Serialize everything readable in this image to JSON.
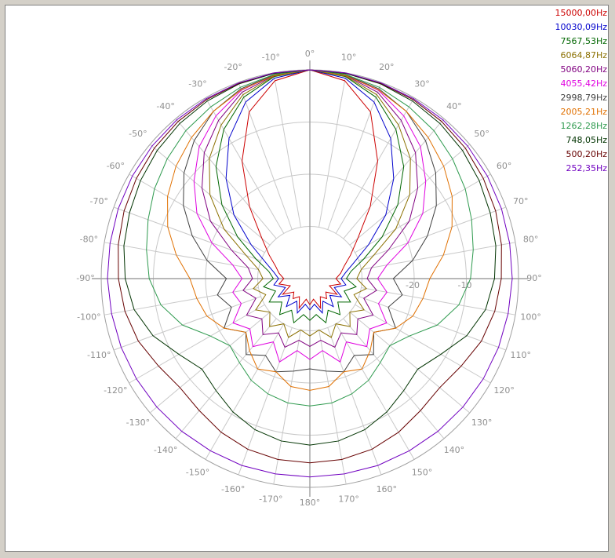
{
  "chart_data": {
    "type": "polar",
    "theta": [
      -170,
      -160,
      -150,
      -140,
      -130,
      -120,
      -110,
      -100,
      -90,
      -80,
      -70,
      -60,
      -50,
      -40,
      -30,
      -20,
      -10,
      0,
      10,
      20,
      30,
      40,
      50,
      60,
      70,
      80,
      90,
      100,
      110,
      120,
      130,
      140,
      150,
      160,
      170,
      180
    ],
    "rlim": [
      -40,
      0
    ],
    "rticks": [
      {
        "value": -30,
        "label": null
      },
      -20,
      -10
    ],
    "thetaticks": [
      {
        "value": -170,
        "label": "-170°"
      },
      {
        "value": -160,
        "label": "-160°"
      },
      {
        "value": -150,
        "label": "-150°"
      },
      {
        "value": -140,
        "label": "-140°"
      },
      {
        "value": -130,
        "label": "-130°"
      },
      {
        "value": -120,
        "label": "-120°"
      },
      {
        "value": -110,
        "label": "-110°"
      },
      {
        "value": -100,
        "label": "-100°"
      },
      {
        "value": -90,
        "label": "-90°"
      },
      {
        "value": -80,
        "label": "-80°"
      },
      {
        "value": -70,
        "label": "-70°"
      },
      {
        "value": -60,
        "label": "-60°"
      },
      {
        "value": -50,
        "label": "-50°"
      },
      {
        "value": -40,
        "label": "-40°"
      },
      {
        "value": -30,
        "label": "-30°"
      },
      {
        "value": -20,
        "label": "-20°"
      },
      {
        "value": -10,
        "label": "-10°"
      },
      {
        "value": 0,
        "label": "0°"
      },
      {
        "value": 10,
        "label": "10°"
      },
      {
        "value": 20,
        "label": "20°"
      },
      {
        "value": 30,
        "label": "30°"
      },
      {
        "value": 40,
        "label": "40°"
      },
      {
        "value": 50,
        "label": "50°"
      },
      {
        "value": 60,
        "label": "60°"
      },
      {
        "value": 70,
        "label": "70°"
      },
      {
        "value": 80,
        "label": "80°"
      },
      {
        "value": 90,
        "label": "90°"
      },
      {
        "value": 100,
        "label": "100°"
      },
      {
        "value": 110,
        "label": "110°"
      },
      {
        "value": 120,
        "label": "120°"
      },
      {
        "value": 130,
        "label": "130°"
      },
      {
        "value": 140,
        "label": "140°"
      },
      {
        "value": 150,
        "label": "150°"
      },
      {
        "value": 160,
        "label": "160°"
      },
      {
        "value": 170,
        "label": "170°"
      },
      {
        "value": 180,
        "label": "180°"
      }
    ],
    "grid": true,
    "legend": "top-right",
    "series": [
      {
        "name": "15000,00Hz",
        "color": "#cc0000",
        "values": [
          -36,
          -34,
          -36,
          -35,
          -36,
          -34,
          -36,
          -34,
          -35,
          -34,
          -33,
          -31,
          -28,
          -22,
          -14,
          -6,
          -1.5,
          0,
          -1.5,
          -6,
          -14,
          -22,
          -28,
          -31,
          -33,
          -34,
          -35,
          -34,
          -36,
          -34,
          -36,
          -35,
          -36,
          -34,
          -36,
          -35
        ]
      },
      {
        "name": "10030,09Hz",
        "color": "#0000cc",
        "values": [
          -35,
          -33,
          -35,
          -33,
          -35,
          -33,
          -35,
          -33,
          -34,
          -33,
          -31,
          -27,
          -21,
          -15,
          -9,
          -4,
          -1,
          0,
          -1,
          -4,
          -9,
          -15,
          -21,
          -27,
          -31,
          -33,
          -34,
          -33,
          -35,
          -33,
          -35,
          -33,
          -35,
          -33,
          -35,
          -34
        ]
      },
      {
        "name": "7567,53Hz",
        "color": "#006600",
        "values": [
          -33,
          -31,
          -33,
          -31,
          -33,
          -31,
          -33,
          -31,
          -33,
          -32,
          -29,
          -24,
          -18,
          -12,
          -7,
          -3,
          -0.7,
          0,
          -0.7,
          -3,
          -7,
          -12,
          -18,
          -24,
          -29,
          -32,
          -33,
          -31,
          -33,
          -31,
          -33,
          -31,
          -33,
          -31,
          -33,
          -32
        ]
      },
      {
        "name": "6064,87Hz",
        "color": "#8b7000",
        "values": [
          -30,
          -28,
          -30,
          -28,
          -30,
          -28,
          -31,
          -29,
          -31,
          -30,
          -27,
          -21,
          -15,
          -10,
          -6,
          -2.5,
          -0.6,
          0,
          -0.6,
          -2.5,
          -6,
          -10,
          -15,
          -21,
          -27,
          -30,
          -31,
          -29,
          -31,
          -28,
          -30,
          -28,
          -30,
          -28,
          -30,
          -29
        ]
      },
      {
        "name": "5060,20Hz",
        "color": "#800080",
        "values": [
          -28,
          -26,
          -28,
          -26,
          -28,
          -26,
          -29,
          -27,
          -29,
          -28,
          -24,
          -18,
          -13,
          -8.5,
          -5,
          -2,
          -0.5,
          0,
          -0.5,
          -2,
          -5,
          -8.5,
          -13,
          -18,
          -24,
          -28,
          -29,
          -27,
          -29,
          -26,
          -28,
          -26,
          -28,
          -26,
          -28,
          -27
        ]
      },
      {
        "name": "4055,42Hz",
        "color": "#e000e0",
        "values": [
          -26,
          -23,
          -26,
          -23,
          -25,
          -23,
          -26,
          -25,
          -27,
          -25,
          -20,
          -15,
          -11,
          -7,
          -4,
          -1.6,
          -0.4,
          0,
          -0.4,
          -1.6,
          -4,
          -7,
          -11,
          -15,
          -20,
          -25,
          -27,
          -25,
          -26,
          -23,
          -25,
          -23,
          -26,
          -23,
          -26,
          -24.5
        ]
      },
      {
        "name": "2998,79Hz",
        "color": "#404040",
        "values": [
          -22,
          -21,
          -23,
          -21,
          -24,
          -21,
          -24,
          -22,
          -24,
          -20,
          -16,
          -12,
          -8.5,
          -5.5,
          -3,
          -1.3,
          -0.4,
          0,
          -0.4,
          -1.3,
          -3,
          -5.5,
          -8.5,
          -12,
          -16,
          -20,
          -24,
          -22,
          -24,
          -21,
          -24,
          -21,
          -23,
          -21,
          -22,
          -22.7
        ]
      },
      {
        "name": "2005,21Hz",
        "color": "#e07000",
        "values": [
          -19,
          -21,
          -20,
          -22,
          -24,
          -21,
          -19,
          -18,
          -17,
          -14,
          -11,
          -8.5,
          -6.5,
          -4.7,
          -3,
          -1.5,
          -0.5,
          0,
          -0.5,
          -1.5,
          -3,
          -4.7,
          -6.5,
          -8.5,
          -11,
          -14,
          -17,
          -18,
          -19,
          -21,
          -24,
          -22,
          -20,
          -21,
          -19,
          -18.6
        ]
      },
      {
        "name": "1262,28Hz",
        "color": "#2e9a4e",
        "values": [
          -15.8,
          -16.5,
          -17.5,
          -19,
          -20,
          -18,
          -14,
          -11,
          -9.2,
          -8.2,
          -7,
          -5.6,
          -4.3,
          -3,
          -2,
          -1,
          -0.3,
          0,
          -0.3,
          -1,
          -2,
          -3,
          -4.3,
          -5.6,
          -7,
          -8.2,
          -9.2,
          -11,
          -14,
          -18,
          -20,
          -19,
          -17.5,
          -16.5,
          -15.8,
          -15.6
        ]
      },
      {
        "name": "748,05Hz",
        "color": "#003300",
        "values": [
          -8.4,
          -9.2,
          -10.5,
          -12,
          -13,
          -11,
          -8,
          -5.8,
          -4.6,
          -3.8,
          -3.2,
          -2.5,
          -1.8,
          -1.2,
          -0.7,
          -0.3,
          -0.1,
          0,
          -0.1,
          -0.3,
          -0.7,
          -1.2,
          -1.8,
          -2.5,
          -3.2,
          -3.8,
          -4.6,
          -5.8,
          -8,
          -11,
          -13,
          -12,
          -10.5,
          -9.2,
          -8.4,
          -8.1
        ]
      },
      {
        "name": "500,20Hz",
        "color": "#660000",
        "values": [
          -4.8,
          -5.2,
          -6,
          -7,
          -7.5,
          -6.5,
          -5,
          -4,
          -3.3,
          -2.7,
          -2.1,
          -1.6,
          -1.1,
          -0.7,
          -0.4,
          -0.2,
          0,
          0,
          0,
          -0.2,
          -0.4,
          -0.7,
          -1.1,
          -1.6,
          -2.1,
          -2.7,
          -3.3,
          -4,
          -5,
          -6.5,
          -7.5,
          -7,
          -6,
          -5.2,
          -4.8,
          -4.7
        ]
      },
      {
        "name": "252,35Hz",
        "color": "#7000c0",
        "values": [
          -2,
          -1.9,
          -1.9,
          -1.8,
          -1.7,
          -1.6,
          -1.5,
          -1.4,
          -1.2,
          -1.1,
          -0.9,
          -0.7,
          -0.5,
          -0.3,
          -0.2,
          -0.1,
          0,
          0,
          0,
          -0.1,
          -0.2,
          -0.3,
          -0.5,
          -0.7,
          -0.9,
          -1.1,
          -1.2,
          -1.4,
          -1.5,
          -1.6,
          -1.7,
          -1.8,
          -1.9,
          -1.9,
          -2,
          -2
        ]
      }
    ]
  }
}
